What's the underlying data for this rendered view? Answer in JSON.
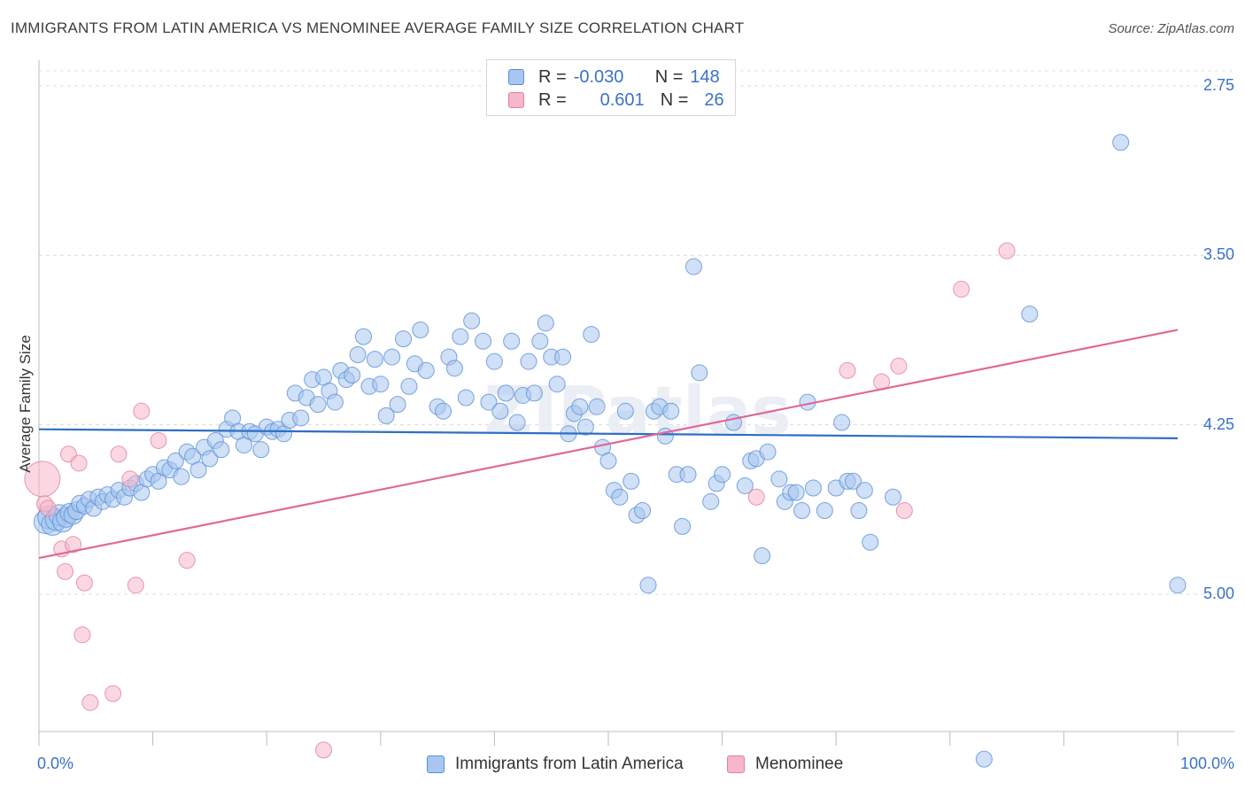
{
  "header": {
    "title": "IMMIGRANTS FROM LATIN AMERICA VS MENOMINEE AVERAGE FAMILY SIZE CORRELATION CHART",
    "source": "Source: ZipAtlas.com"
  },
  "watermark": "ZIPatlas",
  "legend_top": {
    "rows": [
      {
        "r_label": "R =",
        "r_value": "-0.030",
        "n_label": "N =",
        "n_value": "148",
        "color": "#a7c6f0",
        "edge": "#5b8fd6"
      },
      {
        "r_label": "R =",
        "r_value": "0.601",
        "n_label": "N =",
        "n_value": "26",
        "color": "#f5b7c9",
        "edge": "#e27fa0"
      }
    ]
  },
  "bottom_legend": [
    {
      "label": "Immigrants from Latin America",
      "color": "#a7c6f0",
      "edge": "#5b8fd6"
    },
    {
      "label": "Menominee",
      "color": "#f5b7c9",
      "edge": "#e27fa0"
    }
  ],
  "axes": {
    "x_min_label": "0.0%",
    "x_max_label": "100.0%",
    "y_title": "Average Family Size",
    "y_ticks": [
      "5.00",
      "4.25",
      "3.50",
      "2.75"
    ]
  },
  "chart_data": {
    "type": "scatter",
    "xlabel": "",
    "ylabel": "Average Family Size",
    "xlim": [
      0,
      100
    ],
    "ylim": [
      2.0,
      5.1
    ],
    "y_ticks": [
      2.75,
      3.5,
      4.25,
      5.0
    ],
    "grid": "horizontal dashed",
    "legend_position": "top-center",
    "series": [
      {
        "name": "Immigrants from Latin America",
        "color": "#5b8fd6",
        "fill": "#a7c6f0",
        "trend": {
          "x": [
            0,
            100
          ],
          "y": [
            3.48,
            3.44
          ]
        },
        "points": [
          [
            0.6,
            3.07
          ],
          [
            0.9,
            3.09
          ],
          [
            1.2,
            3.06
          ],
          [
            1.5,
            3.08
          ],
          [
            1.8,
            3.1
          ],
          [
            2.1,
            3.07
          ],
          [
            2.4,
            3.09
          ],
          [
            2.7,
            3.11
          ],
          [
            3.0,
            3.1
          ],
          [
            3.3,
            3.12
          ],
          [
            3.6,
            3.15
          ],
          [
            4.0,
            3.14
          ],
          [
            4.4,
            3.17
          ],
          [
            4.8,
            3.13
          ],
          [
            5.2,
            3.18
          ],
          [
            5.6,
            3.16
          ],
          [
            6.0,
            3.19
          ],
          [
            6.5,
            3.17
          ],
          [
            7.0,
            3.21
          ],
          [
            7.5,
            3.18
          ],
          [
            8.0,
            3.22
          ],
          [
            8.5,
            3.24
          ],
          [
            9.0,
            3.2
          ],
          [
            9.5,
            3.26
          ],
          [
            10.0,
            3.28
          ],
          [
            10.5,
            3.25
          ],
          [
            11.0,
            3.31
          ],
          [
            11.5,
            3.3
          ],
          [
            12.0,
            3.34
          ],
          [
            12.5,
            3.27
          ],
          [
            13.0,
            3.38
          ],
          [
            13.5,
            3.36
          ],
          [
            14.0,
            3.3
          ],
          [
            14.5,
            3.4
          ],
          [
            15.0,
            3.35
          ],
          [
            15.5,
            3.43
          ],
          [
            16.0,
            3.39
          ],
          [
            16.5,
            3.48
          ],
          [
            17.0,
            3.53
          ],
          [
            17.5,
            3.47
          ],
          [
            18.0,
            3.41
          ],
          [
            18.5,
            3.47
          ],
          [
            19.0,
            3.46
          ],
          [
            19.5,
            3.39
          ],
          [
            20.0,
            3.49
          ],
          [
            20.5,
            3.47
          ],
          [
            21.0,
            3.48
          ],
          [
            21.5,
            3.46
          ],
          [
            22.0,
            3.52
          ],
          [
            22.5,
            3.64
          ],
          [
            23.0,
            3.53
          ],
          [
            23.5,
            3.62
          ],
          [
            24.0,
            3.7
          ],
          [
            24.5,
            3.59
          ],
          [
            25.0,
            3.71
          ],
          [
            25.5,
            3.65
          ],
          [
            26.0,
            3.6
          ],
          [
            26.5,
            3.74
          ],
          [
            27.0,
            3.7
          ],
          [
            27.5,
            3.72
          ],
          [
            28.0,
            3.81
          ],
          [
            28.5,
            3.89
          ],
          [
            29.0,
            3.67
          ],
          [
            29.5,
            3.79
          ],
          [
            30.0,
            3.68
          ],
          [
            30.5,
            3.54
          ],
          [
            31.0,
            3.8
          ],
          [
            31.5,
            3.59
          ],
          [
            32.0,
            3.88
          ],
          [
            32.5,
            3.67
          ],
          [
            33.0,
            3.77
          ],
          [
            33.5,
            3.92
          ],
          [
            34.0,
            3.74
          ],
          [
            35.0,
            3.58
          ],
          [
            35.5,
            3.56
          ],
          [
            36.0,
            3.8
          ],
          [
            36.5,
            3.75
          ],
          [
            37.0,
            3.89
          ],
          [
            37.5,
            3.62
          ],
          [
            38.0,
            3.96
          ],
          [
            39.0,
            3.87
          ],
          [
            39.5,
            3.6
          ],
          [
            40.0,
            3.78
          ],
          [
            40.5,
            3.56
          ],
          [
            41.0,
            3.64
          ],
          [
            41.5,
            3.87
          ],
          [
            42.0,
            3.51
          ],
          [
            42.5,
            3.63
          ],
          [
            43.0,
            3.78
          ],
          [
            43.5,
            3.64
          ],
          [
            44.0,
            3.87
          ],
          [
            44.5,
            3.95
          ],
          [
            45.0,
            3.8
          ],
          [
            45.5,
            3.68
          ],
          [
            46.0,
            3.8
          ],
          [
            46.5,
            3.46
          ],
          [
            47.0,
            3.55
          ],
          [
            47.5,
            3.58
          ],
          [
            48.0,
            3.49
          ],
          [
            48.5,
            3.9
          ],
          [
            49.0,
            3.58
          ],
          [
            49.5,
            3.4
          ],
          [
            50.0,
            3.34
          ],
          [
            50.5,
            3.21
          ],
          [
            51.0,
            3.18
          ],
          [
            51.5,
            3.56
          ],
          [
            52.0,
            3.25
          ],
          [
            52.5,
            3.1
          ],
          [
            53.0,
            3.12
          ],
          [
            53.5,
            2.79
          ],
          [
            54.0,
            3.56
          ],
          [
            54.5,
            3.58
          ],
          [
            55.0,
            3.45
          ],
          [
            55.5,
            3.56
          ],
          [
            56.0,
            3.28
          ],
          [
            56.5,
            3.05
          ],
          [
            57.0,
            3.28
          ],
          [
            57.5,
            4.2
          ],
          [
            58.0,
            3.73
          ],
          [
            59.0,
            3.16
          ],
          [
            59.5,
            3.24
          ],
          [
            60.0,
            3.28
          ],
          [
            61.0,
            3.51
          ],
          [
            62.0,
            3.23
          ],
          [
            62.5,
            3.34
          ],
          [
            63.0,
            3.35
          ],
          [
            63.5,
            2.92
          ],
          [
            64.0,
            3.38
          ],
          [
            65.0,
            3.26
          ],
          [
            65.5,
            3.16
          ],
          [
            66.0,
            3.2
          ],
          [
            66.5,
            3.2
          ],
          [
            67.0,
            3.12
          ],
          [
            67.5,
            3.6
          ],
          [
            68.0,
            3.22
          ],
          [
            69.0,
            3.12
          ],
          [
            70.0,
            3.22
          ],
          [
            70.5,
            3.51
          ],
          [
            71.0,
            3.25
          ],
          [
            71.5,
            3.25
          ],
          [
            72.0,
            3.12
          ],
          [
            72.5,
            3.21
          ],
          [
            73.0,
            2.98
          ],
          [
            75.0,
            3.18
          ],
          [
            83.0,
            2.02
          ],
          [
            87.0,
            3.99
          ],
          [
            95.0,
            4.75
          ],
          [
            100.0,
            2.79
          ]
        ]
      },
      {
        "name": "Menominee",
        "color": "#e27fa0",
        "fill": "#f5b7c9",
        "trend": {
          "x": [
            0,
            100
          ],
          "y": [
            2.91,
            3.92
          ]
        },
        "points": [
          [
            0.3,
            3.26
          ],
          [
            0.5,
            3.15
          ],
          [
            0.8,
            3.13
          ],
          [
            2.0,
            2.95
          ],
          [
            2.3,
            2.85
          ],
          [
            2.6,
            3.37
          ],
          [
            3.0,
            2.97
          ],
          [
            3.5,
            3.33
          ],
          [
            3.8,
            2.57
          ],
          [
            4.0,
            2.8
          ],
          [
            4.5,
            2.27
          ],
          [
            6.5,
            2.31
          ],
          [
            7.0,
            3.37
          ],
          [
            8.0,
            3.26
          ],
          [
            8.5,
            2.79
          ],
          [
            9.0,
            3.56
          ],
          [
            10.5,
            3.43
          ],
          [
            13.0,
            2.9
          ],
          [
            25.0,
            2.06
          ],
          [
            63.0,
            3.18
          ],
          [
            71.0,
            3.74
          ],
          [
            74.0,
            3.69
          ],
          [
            75.5,
            3.76
          ],
          [
            76.0,
            3.12
          ],
          [
            81.0,
            4.1
          ],
          [
            85.0,
            4.27
          ]
        ]
      }
    ]
  }
}
